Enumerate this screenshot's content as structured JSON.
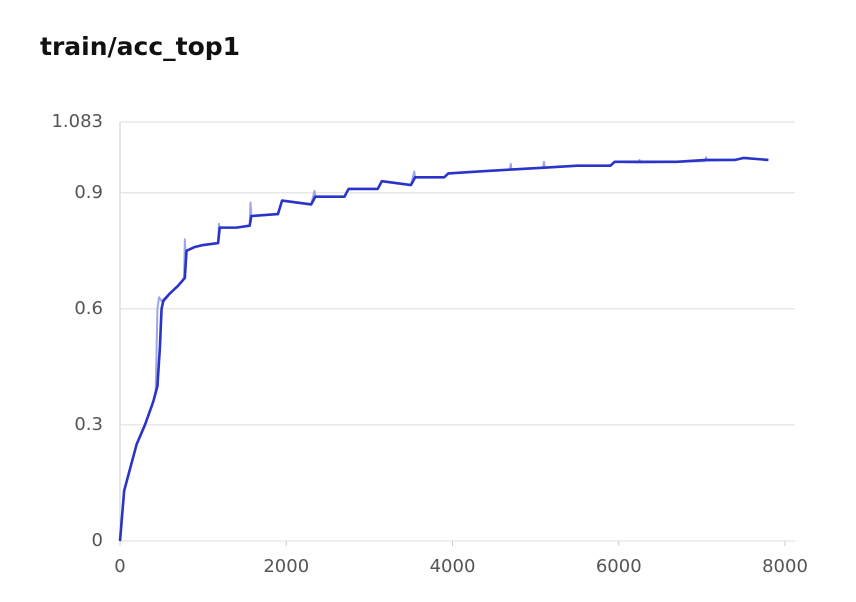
{
  "chart_data": {
    "type": "line",
    "title": "train/acc_top1",
    "xlim": [
      0,
      8120
    ],
    "xticks": [
      0,
      2000,
      4000,
      6000,
      8000
    ],
    "ylim": [
      0,
      1.083
    ],
    "yticks": [
      0,
      0.3,
      0.6,
      0.9,
      1.083
    ],
    "grid": true,
    "series": [
      {
        "color": "#9ea6e8",
        "x": [
          0,
          50,
          100,
          150,
          200,
          300,
          400,
          430,
          450,
          470,
          500,
          600,
          700,
          770,
          780,
          790,
          800,
          900,
          1000,
          1180,
          1190,
          1200,
          1400,
          1560,
          1570,
          1580,
          1900,
          1950,
          2300,
          2340,
          2350,
          2700,
          2750,
          3100,
          3150,
          3500,
          3540,
          3550,
          3900,
          3950,
          4300,
          4690,
          4700,
          4710,
          5090,
          5100,
          5110,
          5500,
          5900,
          5950,
          6240,
          6250,
          6260,
          6700,
          7040,
          7050,
          7060,
          7400,
          7500,
          7800
        ],
        "values": [
          0,
          0.13,
          0.17,
          0.21,
          0.25,
          0.3,
          0.36,
          0.39,
          0.6,
          0.63,
          0.62,
          0.64,
          0.66,
          0.68,
          0.78,
          0.74,
          0.75,
          0.76,
          0.765,
          0.77,
          0.82,
          0.81,
          0.81,
          0.815,
          0.875,
          0.84,
          0.845,
          0.88,
          0.87,
          0.905,
          0.89,
          0.89,
          0.91,
          0.91,
          0.93,
          0.92,
          0.955,
          0.94,
          0.94,
          0.95,
          0.955,
          0.96,
          0.975,
          0.96,
          0.965,
          0.98,
          0.965,
          0.97,
          0.97,
          0.98,
          0.978,
          0.985,
          0.978,
          0.98,
          0.982,
          0.992,
          0.983,
          0.985,
          0.99,
          0.985
        ]
      },
      {
        "color": "#2a34c8",
        "x": [
          0,
          50,
          100,
          150,
          200,
          300,
          400,
          450,
          480,
          500,
          520,
          600,
          700,
          780,
          800,
          900,
          1000,
          1180,
          1200,
          1400,
          1560,
          1580,
          1900,
          1950,
          2300,
          2350,
          2700,
          2750,
          3100,
          3150,
          3500,
          3550,
          3900,
          3950,
          4300,
          4700,
          5100,
          5500,
          5900,
          5950,
          6300,
          6700,
          7050,
          7400,
          7500,
          7800
        ],
        "values": [
          0,
          0.13,
          0.17,
          0.21,
          0.25,
          0.3,
          0.36,
          0.4,
          0.5,
          0.6,
          0.62,
          0.64,
          0.66,
          0.68,
          0.75,
          0.76,
          0.765,
          0.77,
          0.81,
          0.81,
          0.815,
          0.84,
          0.845,
          0.88,
          0.87,
          0.89,
          0.89,
          0.91,
          0.91,
          0.93,
          0.92,
          0.94,
          0.94,
          0.95,
          0.955,
          0.96,
          0.965,
          0.97,
          0.97,
          0.98,
          0.98,
          0.98,
          0.985,
          0.985,
          0.99,
          0.985
        ]
      }
    ]
  }
}
